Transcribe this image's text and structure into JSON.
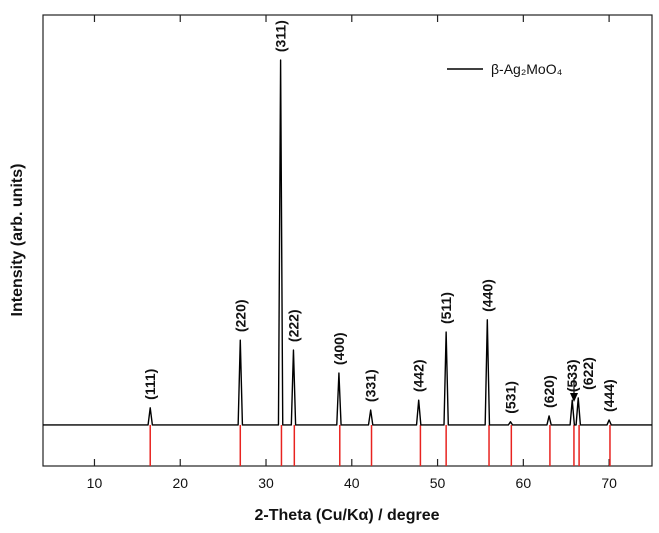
{
  "chart_data": {
    "type": "line",
    "xlabel": "2-Theta (Cu/Kα) / degree",
    "ylabel": "Intensity (arb. units)",
    "xlim": [
      4,
      75
    ],
    "ylim": [
      0,
      100
    ],
    "xticks": [
      10,
      20,
      30,
      40,
      50,
      60,
      70
    ],
    "legend": "upper right",
    "series": [
      {
        "name": "β-Ag₂MoO₄",
        "color": "#000000",
        "x": [
          4,
          16.25,
          16.5,
          16.75,
          26.75,
          27,
          27.25,
          31.45,
          31.7,
          31.95,
          32.95,
          33.2,
          33.45,
          38.25,
          38.5,
          38.75,
          41.95,
          42.2,
          42.45,
          47.55,
          47.8,
          48.05,
          50.75,
          51,
          51.25,
          55.55,
          55.8,
          56.05,
          58.25,
          58.5,
          58.75,
          62.75,
          63,
          63.25,
          65.45,
          65.7,
          65.95,
          66.15,
          66.4,
          66.65,
          69.75,
          70,
          70.25,
          75
        ],
        "values": [
          9.1,
          9.1,
          12.9,
          9.1,
          9.1,
          27.9,
          9.1,
          9.1,
          90.0,
          9.1,
          9.1,
          25.7,
          9.1,
          9.1,
          20.6,
          9.1,
          9.1,
          12.4,
          9.1,
          9.1,
          14.6,
          9.1,
          9.1,
          29.7,
          9.1,
          9.1,
          32.4,
          9.1,
          9.1,
          9.8,
          9.1,
          9.1,
          11.1,
          9.1,
          9.1,
          14.6,
          9.1,
          9.1,
          15.1,
          9.1,
          9.1,
          10.2,
          9.1,
          9.1
        ]
      }
    ],
    "reference": {
      "color": "#e8231f",
      "x": [
        16.5,
        27.0,
        31.8,
        33.3,
        38.6,
        42.3,
        48.0,
        51.0,
        56.0,
        58.6,
        63.1,
        65.9,
        66.5,
        70.1
      ]
    },
    "annotations": [
      {
        "label": "(111)",
        "x": 16.5
      },
      {
        "label": "(220)",
        "x": 27.0
      },
      {
        "label": "(311)",
        "x": 31.7
      },
      {
        "label": "(222)",
        "x": 33.2
      },
      {
        "label": "(400)",
        "x": 38.5
      },
      {
        "label": "(331)",
        "x": 42.2
      },
      {
        "label": "(442)",
        "x": 47.8
      },
      {
        "label": "(511)",
        "x": 51.0
      },
      {
        "label": "(440)",
        "x": 55.8
      },
      {
        "label": "(531)",
        "x": 58.5
      },
      {
        "label": "(620)",
        "x": 63.0
      },
      {
        "label": "(533)",
        "x": 65.7
      },
      {
        "label": "(622)",
        "x": 66.4
      },
      {
        "label": "(444)",
        "x": 70.0
      }
    ]
  }
}
